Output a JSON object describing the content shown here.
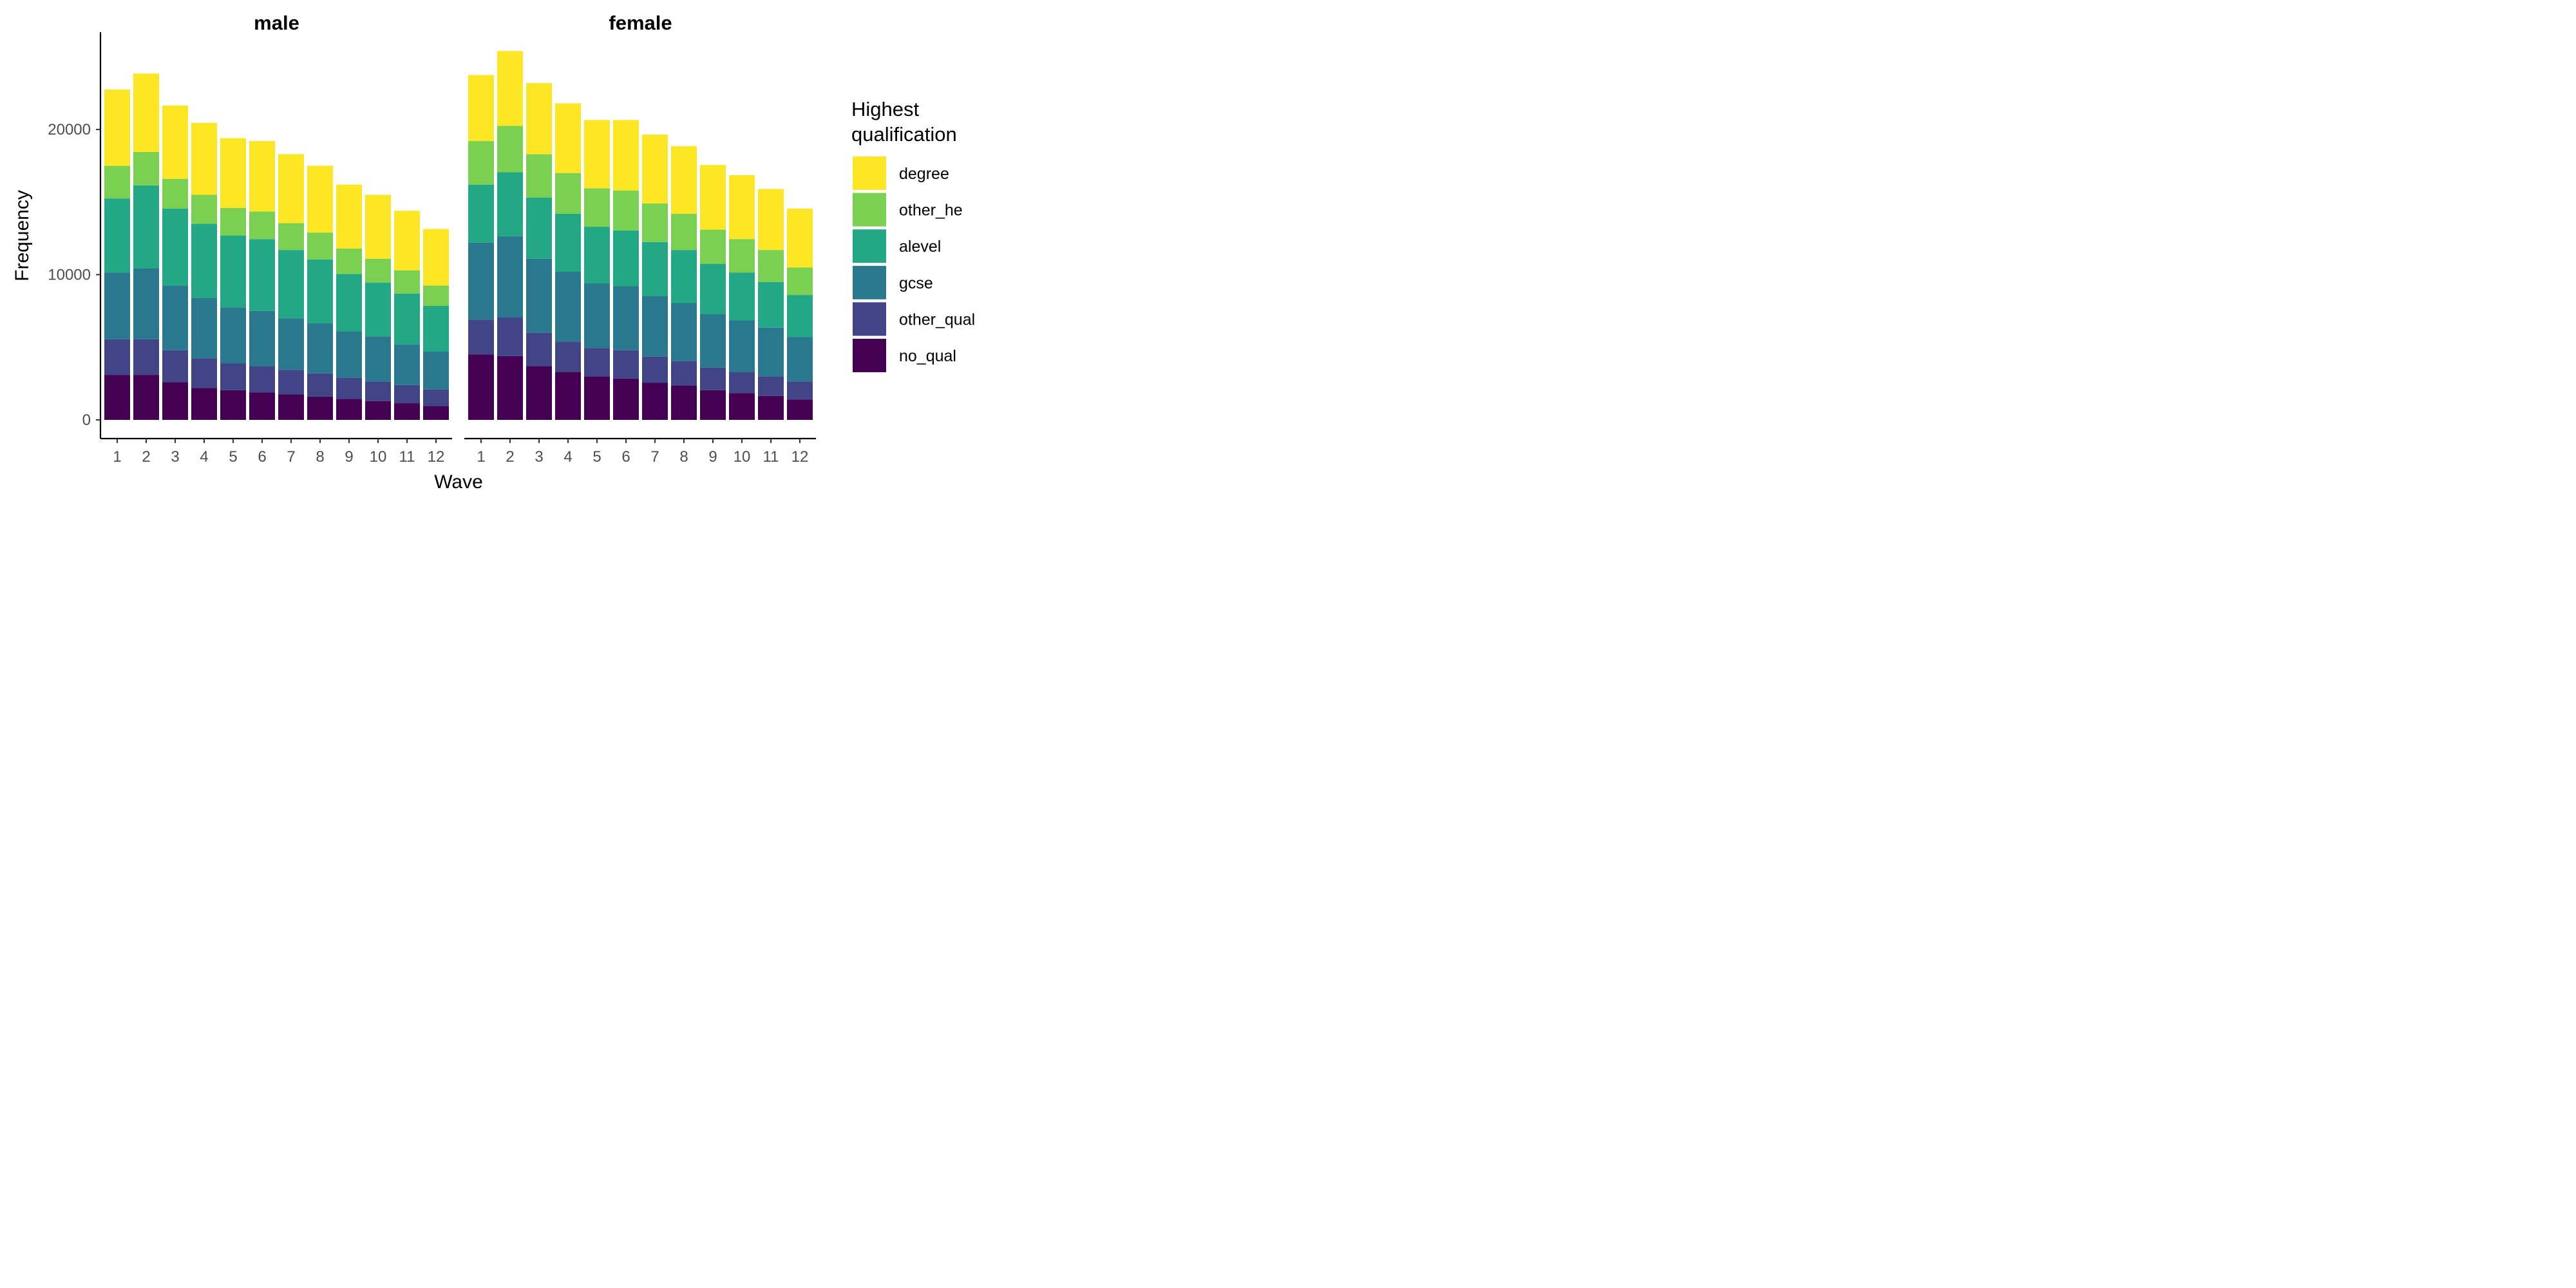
{
  "chart_data": {
    "type": "bar",
    "stacked": true,
    "xlabel": "Wave",
    "ylabel": "Frequency",
    "ylim": [
      0,
      26000
    ],
    "yticks": [
      0,
      10000,
      20000
    ],
    "ytick_labels": [
      "0",
      "10000",
      "20000"
    ],
    "categories": [
      "1",
      "2",
      "3",
      "4",
      "5",
      "6",
      "7",
      "8",
      "9",
      "10",
      "11",
      "12"
    ],
    "grid": false,
    "legend": {
      "title": "Highest qualification",
      "title_lines": [
        "Highest",
        "qualification"
      ],
      "placement": "right",
      "order": [
        "degree",
        "other_he",
        "alevel",
        "gcse",
        "other_qual",
        "no_qual"
      ]
    },
    "stack_order": [
      "no_qual",
      "other_qual",
      "gcse",
      "alevel",
      "other_he",
      "degree"
    ],
    "colors": {
      "degree": "#fde725",
      "other_he": "#7ad151",
      "alevel": "#22a884",
      "gcse": "#2a788e",
      "other_qual": "#414487",
      "no_qual": "#440154"
    },
    "facets": [
      {
        "title": "male",
        "series": [
          {
            "name": "no_qual",
            "values": [
              3100,
              3100,
              2600,
              2200,
              2050,
              1900,
              1750,
              1600,
              1450,
              1300,
              1150,
              950
            ]
          },
          {
            "name": "other_qual",
            "values": [
              2450,
              2450,
              2200,
              2050,
              1850,
              1800,
              1700,
              1600,
              1450,
              1350,
              1250,
              1150
            ]
          },
          {
            "name": "gcse",
            "values": [
              4600,
              4900,
              4450,
              4150,
              3850,
              3800,
              3550,
              3450,
              3200,
              3100,
              2800,
              2600
            ]
          },
          {
            "name": "alevel",
            "values": [
              5100,
              5700,
              5300,
              5100,
              4950,
              4950,
              4700,
              4400,
              3950,
              3700,
              3500,
              3150
            ]
          },
          {
            "name": "other_he",
            "values": [
              2250,
              2300,
              2050,
              2000,
              1900,
              1900,
              1850,
              1850,
              1750,
              1650,
              1600,
              1400
            ]
          },
          {
            "name": "degree",
            "values": [
              5250,
              5400,
              5050,
              4950,
              4800,
              4850,
              4750,
              4600,
              4400,
              4400,
              4100,
              3900
            ]
          }
        ]
      },
      {
        "title": "female",
        "series": [
          {
            "name": "no_qual",
            "values": [
              4500,
              4400,
              3700,
              3300,
              3000,
              2850,
              2550,
              2350,
              2050,
              1850,
              1650,
              1400
            ]
          },
          {
            "name": "other_qual",
            "values": [
              2400,
              2650,
              2300,
              2100,
              1950,
              1950,
              1800,
              1700,
              1550,
              1450,
              1350,
              1250
            ]
          },
          {
            "name": "gcse",
            "values": [
              5300,
              5600,
              5100,
              4800,
              4450,
              4400,
              4200,
              4000,
              3700,
              3550,
              3350,
              3050
            ]
          },
          {
            "name": "alevel",
            "values": [
              4000,
              4400,
              4200,
              4000,
              3900,
              3850,
              3700,
              3650,
              3450,
              3300,
              3150,
              2900
            ]
          },
          {
            "name": "other_he",
            "values": [
              3000,
              3200,
              3000,
              2800,
              2650,
              2750,
              2650,
              2500,
              2350,
              2300,
              2200,
              1900
            ]
          },
          {
            "name": "degree",
            "values": [
              4550,
              5150,
              4900,
              4800,
              4700,
              4850,
              4750,
              4650,
              4450,
              4400,
              4200,
              4050
            ]
          }
        ]
      }
    ]
  }
}
